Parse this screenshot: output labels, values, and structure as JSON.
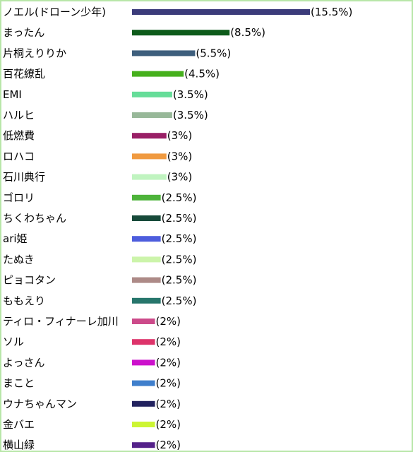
{
  "chart_data": {
    "type": "bar",
    "orientation": "horizontal",
    "categories": [
      "ノエル(ドローン少年)",
      "まったん",
      "片桐えりりか",
      "百花繚乱",
      "EMI",
      "ハルヒ",
      "低燃費",
      "ロハコ",
      "石川典行",
      "ゴロリ",
      "ちくわちゃん",
      "ari姫",
      "たぬき",
      "ピョコタン",
      "ももえり",
      "ティロ・フィナーレ加川",
      "ソル",
      "よっさん",
      "まこと",
      "ウナちゃんマン",
      "金バエ",
      "横山緑"
    ],
    "values": [
      15.5,
      8.5,
      5.5,
      4.5,
      3.5,
      3.5,
      3,
      3,
      3,
      2.5,
      2.5,
      2.5,
      2.5,
      2.5,
      2.5,
      2,
      2,
      2,
      2,
      2,
      2,
      2
    ],
    "value_labels": [
      "(15.5%)",
      "(8.5%)",
      "(5.5%)",
      "(4.5%)",
      "(3.5%)",
      "(3.5%)",
      "(3%)",
      "(3%)",
      "(3%)",
      "(2.5%)",
      "(2.5%)",
      "(2.5%)",
      "(2.5%)",
      "(2.5%)",
      "(2.5%)",
      "(2%)",
      "(2%)",
      "(2%)",
      "(2%)",
      "(2%)",
      "(2%)",
      "(2%)"
    ],
    "colors": [
      "#3b3b7a",
      "#0d5b1a",
      "#3e5f7d",
      "#46b01c",
      "#66dd99",
      "#98b899",
      "#991f66",
      "#f09a40",
      "#c0f4c0",
      "#4db33a",
      "#174a3a",
      "#4d5ddd",
      "#ccf4aa",
      "#ad8a87",
      "#27766c",
      "#cc4a8a",
      "#dd336a",
      "#cc11cc",
      "#3f7fcc",
      "#22225f",
      "#ccf533",
      "#55228a"
    ],
    "xlim": [
      0,
      15.5
    ],
    "grid": false,
    "legend": "none"
  }
}
